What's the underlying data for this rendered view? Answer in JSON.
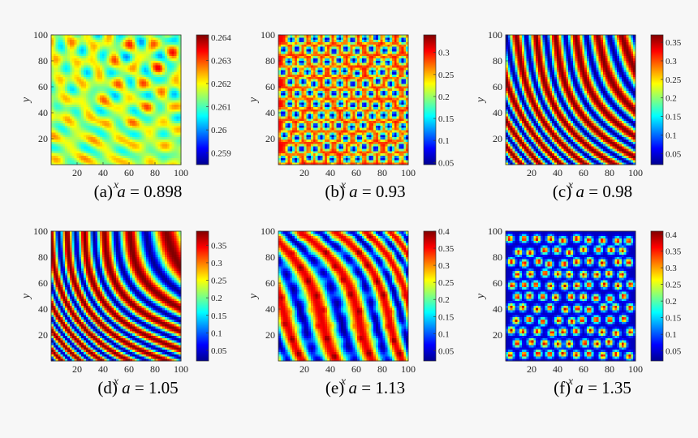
{
  "figure": {
    "colormap": [
      "#00008f",
      "#0000ff",
      "#0080ff",
      "#00ffff",
      "#80ff80",
      "#ffff00",
      "#ff8000",
      "#ff0000",
      "#800000"
    ]
  },
  "chart_data": [
    {
      "type": "heatmap",
      "pattern": "mixed",
      "label_prefix": "(a)",
      "param_symbol": "a",
      "param_eq": "=",
      "param_value": "0.898",
      "xlabel": "x",
      "ylabel": "y",
      "xlim": [
        0,
        100
      ],
      "ylim": [
        0,
        100
      ],
      "xticks": [
        "20",
        "40",
        "60",
        "80",
        "100"
      ],
      "yticks": [
        "20",
        "40",
        "60",
        "80",
        "100"
      ],
      "colorbar_range": [
        0.2585,
        0.2641
      ],
      "colorbar_ticks": [
        "0.264",
        "0.263",
        "0.262",
        "0.261",
        "0.26",
        "0.259"
      ],
      "colorbar_tick_values": [
        0.264,
        0.263,
        0.262,
        0.261,
        0.26,
        0.259
      ]
    },
    {
      "type": "heatmap",
      "pattern": "spots-cold",
      "label_prefix": "(b)",
      "param_symbol": "a",
      "param_eq": "=",
      "param_value": "0.93",
      "xlabel": "x",
      "ylabel": "y",
      "xlim": [
        0,
        100
      ],
      "ylim": [
        0,
        100
      ],
      "xticks": [
        "20",
        "40",
        "60",
        "80",
        "100"
      ],
      "yticks": [
        "20",
        "40",
        "60",
        "80",
        "100"
      ],
      "colorbar_range": [
        0.045,
        0.34
      ],
      "colorbar_ticks": [
        "0.3",
        "0.25",
        "0.2",
        "0.15",
        "0.1",
        "0.05"
      ],
      "colorbar_tick_values": [
        0.3,
        0.25,
        0.2,
        0.15,
        0.1,
        0.05
      ]
    },
    {
      "type": "heatmap",
      "pattern": "mixed-stripes",
      "label_prefix": "(c)",
      "param_symbol": "a",
      "param_eq": "=",
      "param_value": "0.98",
      "xlabel": "x",
      "ylabel": "y",
      "xlim": [
        0,
        100
      ],
      "ylim": [
        0,
        100
      ],
      "xticks": [
        "20",
        "40",
        "60",
        "80",
        "100"
      ],
      "yticks": [
        "20",
        "40",
        "60",
        "80",
        "100"
      ],
      "colorbar_range": [
        0.02,
        0.37
      ],
      "colorbar_ticks": [
        "0.35",
        "0.3",
        "0.25",
        "0.2",
        "0.15",
        "0.1",
        "0.05"
      ],
      "colorbar_tick_values": [
        0.35,
        0.3,
        0.25,
        0.2,
        0.15,
        0.1,
        0.05
      ]
    },
    {
      "type": "heatmap",
      "pattern": "stripes",
      "label_prefix": "(d)",
      "param_symbol": "a",
      "param_eq": "=",
      "param_value": "1.05",
      "xlabel": "x",
      "ylabel": "y",
      "xlim": [
        0,
        100
      ],
      "ylim": [
        0,
        100
      ],
      "xticks": [
        "20",
        "40",
        "60",
        "80",
        "100"
      ],
      "yticks": [
        "20",
        "40",
        "60",
        "80",
        "100"
      ],
      "colorbar_range": [
        0.02,
        0.39
      ],
      "colorbar_ticks": [
        "0.35",
        "0.3",
        "0.25",
        "0.2",
        "0.15",
        "0.1",
        "0.05"
      ],
      "colorbar_tick_values": [
        0.35,
        0.3,
        0.25,
        0.2,
        0.15,
        0.1,
        0.05
      ]
    },
    {
      "type": "heatmap",
      "pattern": "stripes-spots",
      "label_prefix": "(e)",
      "param_symbol": "a",
      "param_eq": "=",
      "param_value": "1.13",
      "xlabel": "x",
      "ylabel": "y",
      "xlim": [
        0,
        100
      ],
      "ylim": [
        0,
        100
      ],
      "xticks": [
        "20",
        "40",
        "60",
        "80",
        "100"
      ],
      "yticks": [
        "20",
        "40",
        "60",
        "80",
        "100"
      ],
      "colorbar_range": [
        0.02,
        0.4
      ],
      "colorbar_ticks": [
        "0.4",
        "0.35",
        "0.3",
        "0.25",
        "0.2",
        "0.15",
        "0.1",
        "0.05"
      ],
      "colorbar_tick_values": [
        0.4,
        0.35,
        0.3,
        0.25,
        0.2,
        0.15,
        0.1,
        0.05
      ]
    },
    {
      "type": "heatmap",
      "pattern": "spots-hot",
      "label_prefix": "(f)",
      "param_symbol": "a",
      "param_eq": "=",
      "param_value": "1.35",
      "xlabel": "x",
      "ylabel": "y",
      "xlim": [
        0,
        100
      ],
      "ylim": [
        0,
        100
      ],
      "xticks": [
        "20",
        "40",
        "60",
        "80",
        "100"
      ],
      "yticks": [
        "20",
        "40",
        "60",
        "80",
        "100"
      ],
      "colorbar_range": [
        0.02,
        0.41
      ],
      "colorbar_ticks": [
        "0.4",
        "0.35",
        "0.3",
        "0.25",
        "0.2",
        "0.15",
        "0.1",
        "0.05"
      ],
      "colorbar_tick_values": [
        0.4,
        0.35,
        0.3,
        0.25,
        0.2,
        0.15,
        0.1,
        0.05
      ]
    }
  ]
}
